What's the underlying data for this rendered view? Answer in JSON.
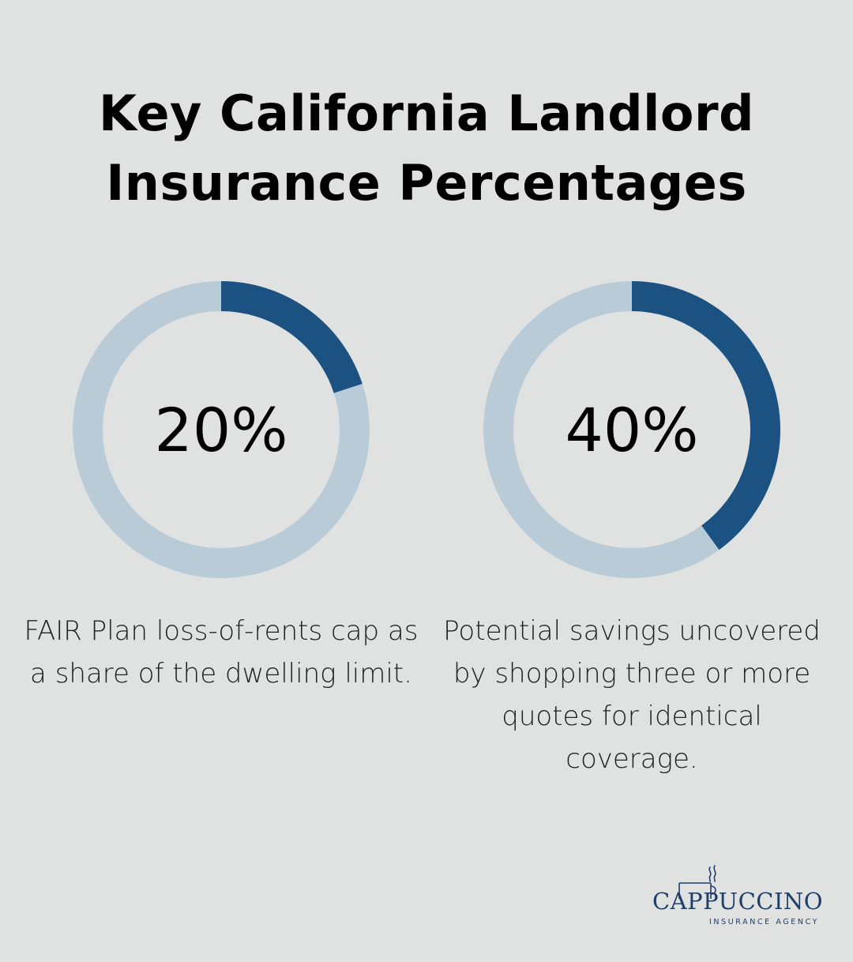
{
  "title": {
    "line1": "Key California Landlord",
    "line2": "Insurance Percentages"
  },
  "colors": {
    "background": "#e0e2e2",
    "track": "#bacbd8",
    "fill": "#1c5281",
    "text": "#000000"
  },
  "chart_data": [
    {
      "type": "pie",
      "style": "donut",
      "value": 20,
      "value_label": "20%",
      "description": "FAIR Plan loss-of-rents cap as a share of the dwelling limit."
    },
    {
      "type": "pie",
      "style": "donut",
      "value": 40,
      "value_label": "40%",
      "description": "Potential savings uncovered by shopping three or more quotes for identical coverage."
    }
  ],
  "logo": {
    "brand": "CAPPUCCINO",
    "tagline": "INSURANCE AGENCY",
    "icon": "coffee-cup-icon"
  }
}
